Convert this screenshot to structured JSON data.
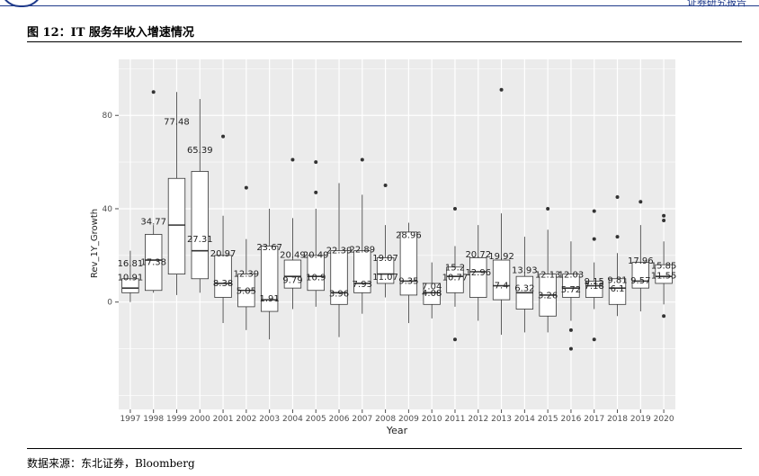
{
  "header": {
    "corner_text": "证券研究报告",
    "figure_title": "图 12：IT 服务年收入增速情况"
  },
  "footer": {
    "source": "数据来源：东北证券，Bloomberg"
  },
  "chart_data": {
    "type": "boxplot",
    "xlabel": "Year",
    "ylabel": "Rev_1Y_Growth",
    "ylim": [
      -46,
      104
    ],
    "yticks": [
      0,
      40,
      80
    ],
    "grid": true,
    "colors": {
      "panel": "#ebebeb",
      "grid_major": "#ffffff",
      "box_fill": "#ffffff",
      "stroke": "#333333",
      "text": "#222222",
      "tick_text": "#4d4d4d"
    },
    "categories": [
      "1997",
      "1998",
      "1999",
      "2000",
      "2001",
      "2002",
      "2003",
      "2004",
      "2005",
      "2006",
      "2007",
      "2008",
      "2009",
      "2010",
      "2011",
      "2012",
      "2013",
      "2014",
      "2015",
      "2016",
      "2017",
      "2018",
      "2019",
      "2020"
    ],
    "boxes": [
      {
        "q1": 4,
        "median": 6,
        "q3": 10,
        "lo": 0,
        "hi": 22,
        "outliers": []
      },
      {
        "q1": 5,
        "median": 18,
        "q3": 29,
        "lo": 4,
        "hi": 33,
        "outliers": [
          90
        ]
      },
      {
        "q1": 12,
        "median": 33,
        "q3": 53,
        "lo": 3,
        "hi": 90,
        "outliers": []
      },
      {
        "q1": 10,
        "median": 22,
        "q3": 56,
        "lo": 4,
        "hi": 87,
        "outliers": []
      },
      {
        "q1": 2,
        "median": 8,
        "q3": 20,
        "lo": -9,
        "hi": 37,
        "outliers": [
          71
        ]
      },
      {
        "q1": -2,
        "median": 5,
        "q3": 12,
        "lo": -12,
        "hi": 27,
        "outliers": [
          49
        ]
      },
      {
        "q1": -4,
        "median": 1,
        "q3": 24,
        "lo": -16,
        "hi": 40,
        "outliers": []
      },
      {
        "q1": 6,
        "median": 11,
        "q3": 18,
        "lo": -3,
        "hi": 36,
        "outliers": [
          61
        ]
      },
      {
        "q1": 5,
        "median": 11,
        "q3": 20,
        "lo": -2,
        "hi": 40,
        "outliers": [
          60,
          47
        ]
      },
      {
        "q1": -1,
        "median": 4,
        "q3": 22,
        "lo": -15,
        "hi": 51,
        "outliers": []
      },
      {
        "q1": 4,
        "median": 8,
        "q3": 22,
        "lo": -5,
        "hi": 46,
        "outliers": [
          61
        ]
      },
      {
        "q1": 8,
        "median": 12,
        "q3": 19,
        "lo": 2,
        "hi": 33,
        "outliers": [
          50
        ]
      },
      {
        "q1": 3,
        "median": 9,
        "q3": 30,
        "lo": -9,
        "hi": 34,
        "outliers": []
      },
      {
        "q1": -1,
        "median": 4,
        "q3": 8,
        "lo": -7,
        "hi": 17,
        "outliers": []
      },
      {
        "q1": 4,
        "median": 11,
        "q3": 15,
        "lo": -2,
        "hi": 24,
        "outliers": [
          40,
          -16
        ]
      },
      {
        "q1": 2,
        "median": 13,
        "q3": 19,
        "lo": -8,
        "hi": 33,
        "outliers": []
      },
      {
        "q1": 1,
        "median": 7,
        "q3": 18,
        "lo": -14,
        "hi": 38,
        "outliers": [
          91
        ]
      },
      {
        "q1": -3,
        "median": 4,
        "q3": 11,
        "lo": -13,
        "hi": 28,
        "outliers": []
      },
      {
        "q1": -6,
        "median": 3,
        "q3": 12,
        "lo": -13,
        "hi": 31,
        "outliers": [
          40
        ]
      },
      {
        "q1": 2,
        "median": 6,
        "q3": 12,
        "lo": -8,
        "hi": 26,
        "outliers": [
          -12,
          -20
        ]
      },
      {
        "q1": 2,
        "median": 7,
        "q3": 9,
        "lo": -3,
        "hi": 17,
        "outliers": [
          39,
          27,
          -16
        ]
      },
      {
        "q1": -1,
        "median": 6,
        "q3": 10,
        "lo": -6,
        "hi": 21,
        "outliers": [
          45,
          28
        ]
      },
      {
        "q1": 6,
        "median": 9,
        "q3": 17,
        "lo": -4,
        "hi": 33,
        "outliers": [
          43
        ]
      },
      {
        "q1": 8,
        "median": 11,
        "q3": 16,
        "lo": -1,
        "hi": 26,
        "outliers": [
          37,
          35,
          -6
        ]
      }
    ],
    "labels": [
      [
        {
          "text": "16.81",
          "y": 16.8
        },
        {
          "text": "10.91",
          "y": 10.9
        }
      ],
      [
        {
          "text": "34.77",
          "y": 34.8
        },
        {
          "text": "17.38",
          "y": 17.4
        }
      ],
      [
        {
          "text": "77.48",
          "y": 77.5
        }
      ],
      [
        {
          "text": "65.39",
          "y": 65.4
        },
        {
          "text": "27.31",
          "y": 27.3
        }
      ],
      [
        {
          "text": "20.97",
          "y": 21.0
        },
        {
          "text": "8.38",
          "y": 8.4
        }
      ],
      [
        {
          "text": "12.39",
          "y": 12.4
        },
        {
          "text": "5.05",
          "y": 5.05
        }
      ],
      [
        {
          "text": "23.67",
          "y": 23.7
        },
        {
          "text": "1.91",
          "y": 1.9
        }
      ],
      [
        {
          "text": "20.49",
          "y": 20.5
        },
        {
          "text": "9.79",
          "y": 9.8
        }
      ],
      [
        {
          "text": "20.49",
          "y": 20.5
        },
        {
          "text": "10.9",
          "y": 10.9
        }
      ],
      [
        {
          "text": "22.39",
          "y": 22.4
        },
        {
          "text": "3.96",
          "y": 3.96
        }
      ],
      [
        {
          "text": "22.89",
          "y": 22.9
        },
        {
          "text": "7.93",
          "y": 7.9
        }
      ],
      [
        {
          "text": "19.07",
          "y": 19.1
        },
        {
          "text": "11.07",
          "y": 11.1
        }
      ],
      [
        {
          "text": "28.96",
          "y": 29.0
        },
        {
          "text": "9.35",
          "y": 9.35
        }
      ],
      [
        {
          "text": "7.04",
          "y": 7.0
        },
        {
          "text": "4.08",
          "y": 4.08
        }
      ],
      [
        {
          "text": "15.2",
          "y": 15.2
        },
        {
          "text": "10.77",
          "y": 10.8
        }
      ],
      [
        {
          "text": "20.72",
          "y": 20.7
        },
        {
          "text": "12.96",
          "y": 12.96
        }
      ],
      [
        {
          "text": "19.92",
          "y": 19.9
        },
        {
          "text": "7.4",
          "y": 7.4
        }
      ],
      [
        {
          "text": "13.93",
          "y": 13.9
        },
        {
          "text": "6.32",
          "y": 6.3
        }
      ],
      [
        {
          "text": "12.13",
          "y": 12.1
        },
        {
          "text": "3.26",
          "y": 3.26
        }
      ],
      [
        {
          "text": "12.03",
          "y": 12.0
        },
        {
          "text": "5.72",
          "y": 5.7
        }
      ],
      [
        {
          "text": "9.15",
          "y": 9.15
        },
        {
          "text": "7.18",
          "y": 7.2
        }
      ],
      [
        {
          "text": "9.81",
          "y": 9.8
        },
        {
          "text": "6.1",
          "y": 6.1
        }
      ],
      [
        {
          "text": "17.96",
          "y": 18.0
        },
        {
          "text": "9.57",
          "y": 9.6
        }
      ],
      [
        {
          "text": "15.85",
          "y": 15.9
        },
        {
          "text": "11.55",
          "y": 11.6
        }
      ]
    ]
  }
}
